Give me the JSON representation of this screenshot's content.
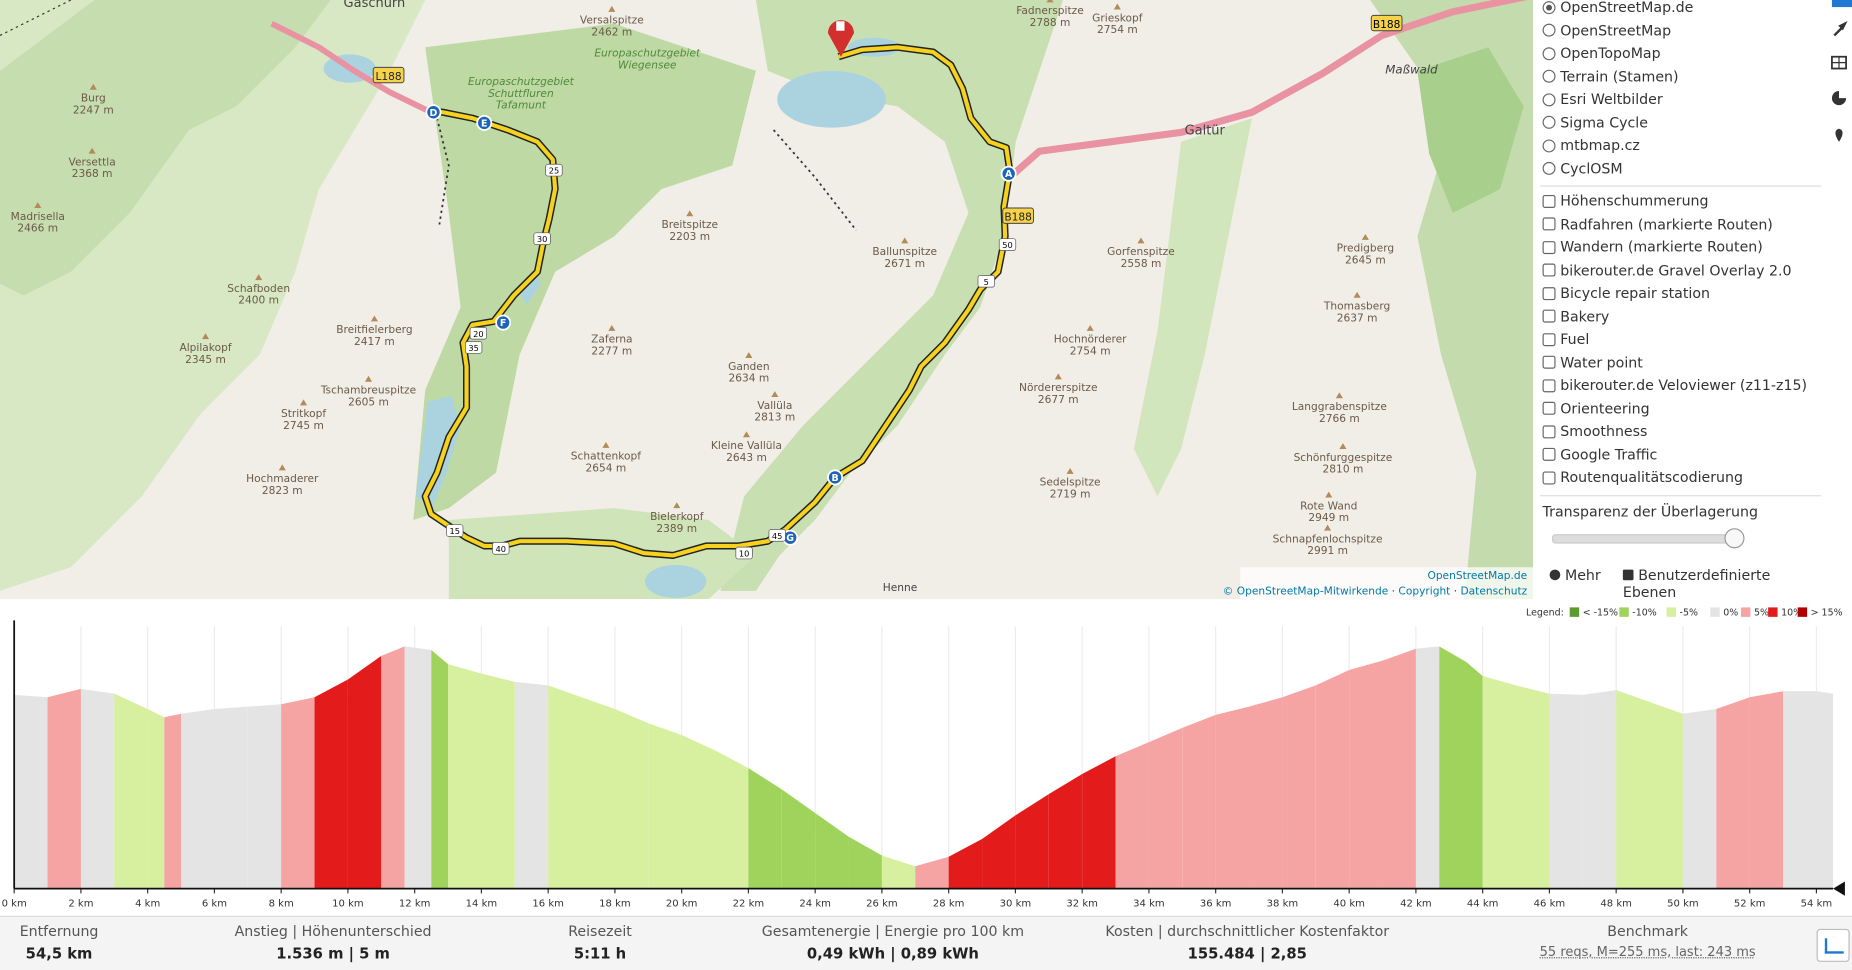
{
  "map": {
    "places": [
      {
        "name": "Versalspitze",
        "elevation": "2462 m"
      },
      {
        "name": "Fadnerspitze",
        "elevation": "2788 m"
      },
      {
        "name": "Grieskopf",
        "elevation": "2754 m"
      },
      {
        "name": "Burg",
        "elevation": "2247 m"
      },
      {
        "name": "Versettla",
        "elevation": "2368 m"
      },
      {
        "name": "Madrisella",
        "elevation": "2466 m"
      },
      {
        "name": "Breitspitze",
        "elevation": "2203 m"
      },
      {
        "name": "Ballunspitze",
        "elevation": "2671 m"
      },
      {
        "name": "Gorfenspitze",
        "elevation": "2558 m"
      },
      {
        "name": "Predigberg",
        "elevation": "2645 m"
      },
      {
        "name": "Schafboden",
        "elevation": "2400 m"
      },
      {
        "name": "Breitfielerberg",
        "elevation": "2417 m"
      },
      {
        "name": "Zaferna",
        "elevation": "2277 m"
      },
      {
        "name": "Alpilakopf",
        "elevation": "2345 m"
      },
      {
        "name": "Ganden",
        "elevation": "2634 m"
      },
      {
        "name": "Thomasberg",
        "elevation": "2637 m"
      },
      {
        "name": "Hochnörderer",
        "elevation": "2754 m"
      },
      {
        "name": "Tschambreuspitze",
        "elevation": "2605 m"
      },
      {
        "name": "Nördererspitze",
        "elevation": "2677 m"
      },
      {
        "name": "Vallüla",
        "elevation": "2813 m"
      },
      {
        "name": "Stritkopf",
        "elevation": "2745 m"
      },
      {
        "name": "Langgrabenspitze",
        "elevation": "2766 m"
      },
      {
        "name": "Schattenkopf",
        "elevation": "2654 m"
      },
      {
        "name": "Kleine Vallüla",
        "elevation": "2643 m"
      },
      {
        "name": "Schönfurggespitze",
        "elevation": "2810 m"
      },
      {
        "name": "Hochmaderer",
        "elevation": "2823 m"
      },
      {
        "name": "Sedelspitze",
        "elevation": "2719 m"
      },
      {
        "name": "Rote Wand",
        "elevation": "2949 m"
      },
      {
        "name": "Bielerkopf",
        "elevation": "2389 m"
      },
      {
        "name": "Schnapfenlochspitze",
        "elevation": "2991 m"
      }
    ],
    "towns": [
      "Gaschurn",
      "Galtür",
      "Maßwald",
      "Henne"
    ],
    "protected_areas": [
      "Europaschutzgebiet Wiegensee",
      "Europaschutzgebiet Schuttfluren Tafamunt"
    ],
    "roads": [
      "L188",
      "B188"
    ],
    "waypoints": [
      "A",
      "B",
      "D",
      "E",
      "F",
      "G"
    ],
    "km_markers": [
      5,
      10,
      15,
      20,
      25,
      30,
      35,
      40,
      45,
      50
    ],
    "attribution": {
      "source": "OpenStreetMap.de",
      "credit": "© OpenStreetMap-Mitwirkende",
      "links": [
        "Copyright",
        "Datenschutz"
      ]
    }
  },
  "layers": {
    "base": [
      {
        "label": "OpenStreetMap.de",
        "checked": true
      },
      {
        "label": "OpenStreetMap",
        "checked": false
      },
      {
        "label": "OpenTopoMap",
        "checked": false
      },
      {
        "label": "Terrain (Stamen)",
        "checked": false
      },
      {
        "label": "Esri Weltbilder",
        "checked": false
      },
      {
        "label": "Sigma Cycle",
        "checked": false
      },
      {
        "label": "mtbmap.cz",
        "checked": false
      },
      {
        "label": "CyclOSM",
        "checked": false
      }
    ],
    "overlays": [
      "Höhenschummerung",
      "Radfahren (markierte Routen)",
      "Wandern (markierte Routen)",
      "bikerouter.de Gravel Overlay 2.0",
      "Bicycle repair station",
      "Bakery",
      "Fuel",
      "Water point",
      "bikerouter.de Veloviewer (z11-z15)",
      "Orienteering",
      "Smoothness",
      "Google Traffic",
      "Routenqualitätscodierung"
    ],
    "transparency_label": "Transparenz der Überlagerung",
    "buttons": [
      "Mehr",
      "Benutzerdefinierte Ebenen"
    ]
  },
  "chart_data": {
    "type": "area",
    "legend_title": "Legend:",
    "legend": [
      {
        "label": "< -15%",
        "color": "#5e9a2e"
      },
      {
        "label": "-10%",
        "color": "#9fd35c"
      },
      {
        "label": "-5%",
        "color": "#d6f0a0"
      },
      {
        "label": "0%",
        "color": "#e4e4e4"
      },
      {
        "label": "5%",
        "color": "#f5a3a3"
      },
      {
        "label": "10%",
        "color": "#e41b1b"
      },
      {
        "label": "> 15%",
        "color": "#b00000"
      }
    ],
    "x": [
      0,
      1,
      2,
      3,
      4,
      4.5,
      5,
      6,
      7,
      8,
      9,
      10,
      11,
      11.7,
      12.5,
      13,
      14,
      15,
      16,
      17,
      18,
      19,
      20,
      21,
      22,
      23,
      24,
      25,
      26,
      27,
      28,
      29,
      30,
      31,
      32,
      33,
      34,
      35,
      36,
      37,
      38,
      39,
      40,
      41,
      42,
      42.7,
      43.5,
      44,
      45,
      46,
      47,
      48,
      49,
      50,
      51,
      52,
      53,
      54,
      54.5
    ],
    "series": [
      {
        "values": [
          1820,
          1810,
          1845,
          1825,
          1760,
          1725,
          1740,
          1760,
          1770,
          1780,
          1810,
          1885,
          1985,
          2025,
          2010,
          1950,
          1910,
          1875,
          1860,
          1810,
          1760,
          1700,
          1650,
          1585,
          1510,
          1420,
          1320,
          1220,
          1140,
          1095,
          1135,
          1210,
          1310,
          1400,
          1485,
          1560,
          1620,
          1680,
          1735,
          1770,
          1810,
          1860,
          1925,
          1965,
          2015,
          2025,
          1960,
          1900,
          1860,
          1825,
          1820,
          1840,
          1790,
          1740,
          1760,
          1810,
          1835,
          1835,
          1825
        ]
      }
    ],
    "xlim": [
      0,
      54.5
    ],
    "ylim": [
      1000,
      2110
    ],
    "xticks": [
      {
        "value": 0,
        "label": "0 km"
      },
      {
        "value": 2,
        "label": "2 km"
      },
      {
        "value": 4,
        "label": "4 km"
      },
      {
        "value": 6,
        "label": "6 km"
      },
      {
        "value": 8,
        "label": "8 km"
      },
      {
        "value": 10,
        "label": "10 km"
      },
      {
        "value": 12,
        "label": "12 km"
      },
      {
        "value": 14,
        "label": "14 km"
      },
      {
        "value": 16,
        "label": "16 km"
      },
      {
        "value": 18,
        "label": "18 km"
      },
      {
        "value": 20,
        "label": "20 km"
      },
      {
        "value": 22,
        "label": "22 km"
      },
      {
        "value": 24,
        "label": "24 km"
      },
      {
        "value": 26,
        "label": "26 km"
      },
      {
        "value": 28,
        "label": "28 km"
      },
      {
        "value": 30,
        "label": "30 km"
      },
      {
        "value": 32,
        "label": "32 km"
      },
      {
        "value": 34,
        "label": "34 km"
      },
      {
        "value": 36,
        "label": "36 km"
      },
      {
        "value": 38,
        "label": "38 km"
      },
      {
        "value": 40,
        "label": "40 km"
      },
      {
        "value": 42,
        "label": "42 km"
      },
      {
        "value": 44,
        "label": "44 km"
      },
      {
        "value": 46,
        "label": "46 km"
      },
      {
        "value": 48,
        "label": "48 km"
      },
      {
        "value": 50,
        "label": "50 km"
      },
      {
        "value": 52,
        "label": "52 km"
      },
      {
        "value": 54,
        "label": "54 km"
      }
    ],
    "grid": true
  },
  "stats": [
    {
      "label": "Entfernung",
      "value": "54,5 km"
    },
    {
      "label": "Anstieg | Höhenunterschied",
      "value": "1.536 m | 5 m"
    },
    {
      "label": "Reisezeit",
      "value": "5:11 h"
    },
    {
      "label": "Gesamtenergie | Energie pro 100 km",
      "value": "0,49 kWh | 0,89 kWh"
    },
    {
      "label": "Kosten | durchschnittlicher Kostenfaktor",
      "value": "155.484 | 2,85"
    },
    {
      "label": "Benchmark",
      "value": "55 reqs, M=255 ms, last: 243 ms"
    }
  ]
}
